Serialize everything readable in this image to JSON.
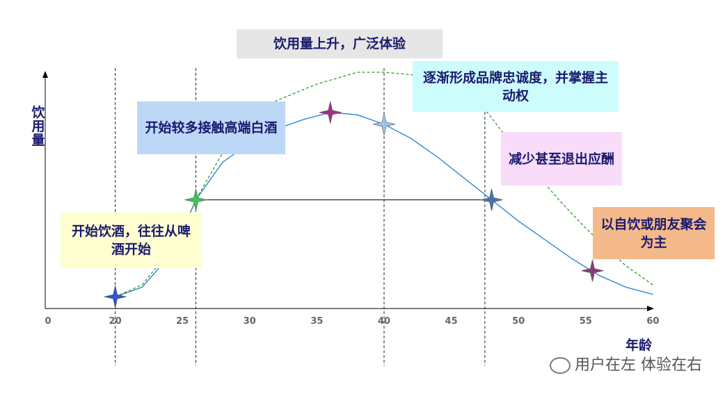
{
  "chart_data": {
    "type": "line",
    "ylabel": "饮用量",
    "xlabel": "年龄",
    "xticks": [
      0,
      20,
      25,
      30,
      35,
      40,
      45,
      50,
      55,
      60
    ],
    "xlim": [
      0,
      60
    ],
    "ylim": [
      0,
      100
    ],
    "series": [
      {
        "color": "#1f7fd0",
        "style": "solid",
        "x": [
          20,
          22,
          24,
          25,
          26,
          28,
          30,
          32,
          34,
          36,
          38,
          40,
          42,
          44,
          46,
          48,
          50,
          52,
          54,
          56,
          58,
          60
        ],
        "values": [
          5,
          9,
          22,
          33,
          46,
          62,
          70,
          76,
          80,
          83,
          82,
          78,
          72,
          64,
          55,
          46,
          37,
          29,
          21,
          14,
          9,
          6
        ]
      },
      {
        "color": "#2e9a2e",
        "style": "dashed",
        "x": [
          20,
          22,
          24,
          25,
          26,
          28,
          30,
          32,
          35,
          38,
          40,
          42,
          45,
          47,
          50,
          53,
          55,
          58,
          60
        ],
        "values": [
          5,
          10,
          24,
          33,
          46,
          66,
          78,
          88,
          95,
          100,
          100,
          99,
          96,
          88,
          66,
          46,
          34,
          18,
          10
        ]
      }
    ],
    "markers": {
      "x": [
        20,
        26,
        36,
        40,
        48,
        55.5
      ],
      "y": [
        5,
        46,
        83,
        78,
        46,
        16
      ],
      "colors": [
        "#2f55d4",
        "#3fc25a",
        "#a0308f",
        "#9fc4ec",
        "#4a72b0",
        "#8a3a7a"
      ]
    },
    "reference_lines": [
      20,
      26,
      40,
      47.5
    ],
    "annotations": [
      {
        "text": "饮用量上升，广泛体验",
        "color": "#e6e6e6"
      },
      {
        "text": "开始较多接触高端白酒",
        "color": "#bdd7f7"
      },
      {
        "text": "逐渐形成品牌忠诚度，并掌握主动权",
        "color": "#ccfcfc"
      },
      {
        "text": "减少甚至退出应酬",
        "color": "#f9dcf9"
      },
      {
        "text": "开始饮酒，往往从啤酒开始",
        "color": "#fefed0"
      },
      {
        "text": "以自饮或朋友聚会为主",
        "color": "#f4b98a"
      }
    ],
    "watermark": "用户在左 体验在右"
  }
}
